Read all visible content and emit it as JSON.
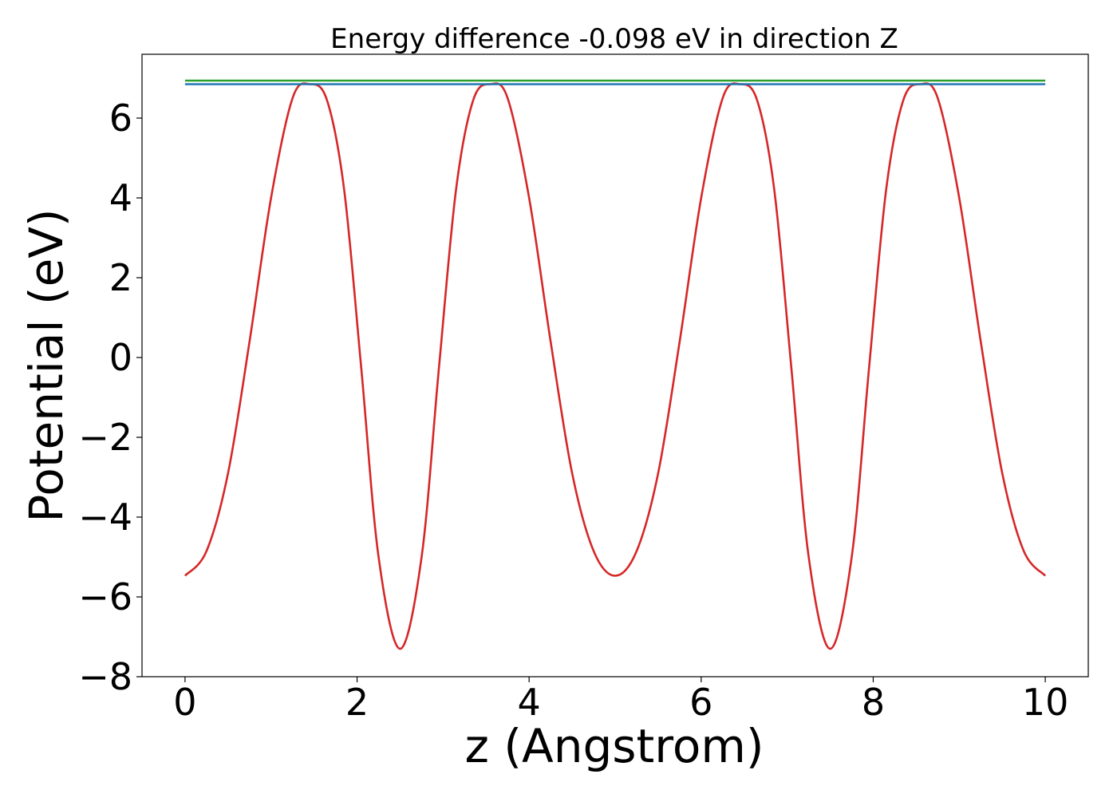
{
  "chart_data": {
    "type": "line",
    "title": "Energy difference -0.098 eV in direction Z",
    "xlabel": "z (Angstrom)",
    "ylabel": "Potential (eV)",
    "xlim": [
      -0.5,
      10.5
    ],
    "ylim": [
      -8,
      7.6
    ],
    "xticks": [
      0,
      2,
      4,
      6,
      8,
      10
    ],
    "yticks": [
      -8,
      -6,
      -4,
      -2,
      0,
      2,
      4,
      6
    ],
    "xtick_labels": [
      "0",
      "2",
      "4",
      "6",
      "8",
      "10"
    ],
    "ytick_labels": [
      "−8",
      "−6",
      "−4",
      "−2",
      "0",
      "2",
      "4",
      "6"
    ],
    "grid": false,
    "series": [
      {
        "color": "#d62728",
        "x": [
          0,
          0.25,
          0.5,
          0.75,
          1.0,
          1.25,
          1.45,
          1.65,
          1.85,
          2.05,
          2.25,
          2.5,
          2.75,
          2.95,
          3.15,
          3.35,
          3.55,
          3.75,
          4.0,
          4.25,
          4.5,
          4.75,
          5.0,
          5.25,
          5.5,
          5.75,
          6.0,
          6.25,
          6.45,
          6.65,
          6.85,
          7.05,
          7.25,
          7.5,
          7.75,
          7.95,
          8.15,
          8.35,
          8.55,
          8.75,
          9.0,
          9.25,
          9.5,
          9.75,
          10.0
        ],
        "y": [
          -5.47,
          -4.85,
          -2.9,
          0.4,
          4.0,
          6.5,
          6.85,
          6.45,
          4.2,
          -0.3,
          -5.0,
          -7.3,
          -5.0,
          -0.3,
          4.2,
          6.45,
          6.85,
          6.5,
          4.0,
          0.4,
          -2.9,
          -4.85,
          -5.47,
          -4.85,
          -2.9,
          0.4,
          4.0,
          6.5,
          6.85,
          6.45,
          4.2,
          -0.3,
          -5.0,
          -7.3,
          -5.0,
          -0.3,
          4.2,
          6.45,
          6.85,
          6.5,
          4.0,
          0.4,
          -2.9,
          -4.85,
          -5.47
        ]
      },
      {
        "color": "#2ca02c",
        "x": [
          0,
          10
        ],
        "y": [
          6.94,
          6.94
        ]
      },
      {
        "color": "#1f77b4",
        "x": [
          0,
          10
        ],
        "y": [
          6.85,
          6.85
        ]
      }
    ]
  }
}
